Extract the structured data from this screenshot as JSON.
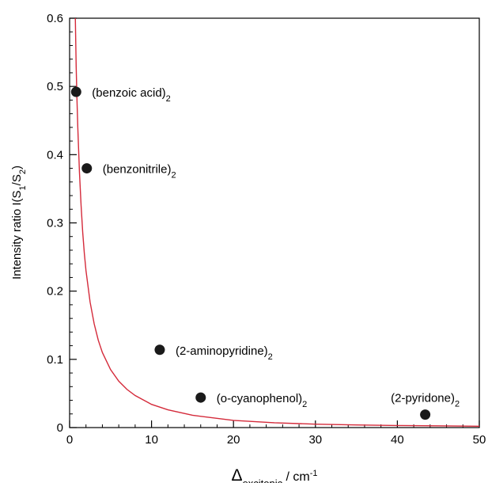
{
  "chart_data": {
    "type": "scatter",
    "title": "",
    "xlabel": {
      "main": "Δ",
      "sub": "excitonic",
      "unit": " / cm",
      "sup": "-1"
    },
    "ylabel": {
      "part1": "Intensity ratio I(S",
      "sub1": "1",
      "part2": "/S",
      "sub2": "2",
      "part3": ")"
    },
    "xlim": [
      0,
      50
    ],
    "ylim": [
      0,
      0.6
    ],
    "xticks": [
      0,
      10,
      20,
      30,
      40,
      50
    ],
    "xtick_labels": [
      "0",
      "10",
      "20",
      "30",
      "40",
      "50"
    ],
    "yticks": [
      0,
      0.1,
      0.2,
      0.3,
      0.4,
      0.5,
      0.6
    ],
    "ytick_labels": [
      "0",
      "0.1",
      "0.2",
      "0.3",
      "0.4",
      "0.5",
      "0.6"
    ],
    "grid": false,
    "points": [
      {
        "x": 0.8,
        "y": 0.492,
        "label": "(benzoic acid)",
        "sub": "2"
      },
      {
        "x": 2.1,
        "y": 0.38,
        "label": "(benzonitrile)",
        "sub": "2"
      },
      {
        "x": 11.0,
        "y": 0.114,
        "label": "(2-aminopyridine)",
        "sub": "2"
      },
      {
        "x": 16.0,
        "y": 0.044,
        "label": "(o-cyanophenol)",
        "sub": "2"
      },
      {
        "x": 43.4,
        "y": 0.019,
        "label": "(2-pyridone)",
        "sub": "2"
      }
    ],
    "curve": {
      "color": "#d42a3a",
      "x": [
        0.7,
        0.8,
        0.9,
        1.0,
        1.2,
        1.4,
        1.6,
        1.8,
        2.0,
        2.5,
        3,
        3.5,
        4,
        5,
        6,
        7,
        8,
        10,
        12,
        15,
        20,
        25,
        30,
        35,
        40,
        45,
        50
      ],
      "y": [
        0.6,
        0.53,
        0.481,
        0.44,
        0.375,
        0.326,
        0.286,
        0.255,
        0.23,
        0.184,
        0.152,
        0.128,
        0.11,
        0.085,
        0.068,
        0.056,
        0.047,
        0.034,
        0.026,
        0.018,
        0.0105,
        0.007,
        0.005,
        0.0038,
        0.003,
        0.0025,
        0.002
      ]
    },
    "marker_color": "#1a1a1a"
  }
}
